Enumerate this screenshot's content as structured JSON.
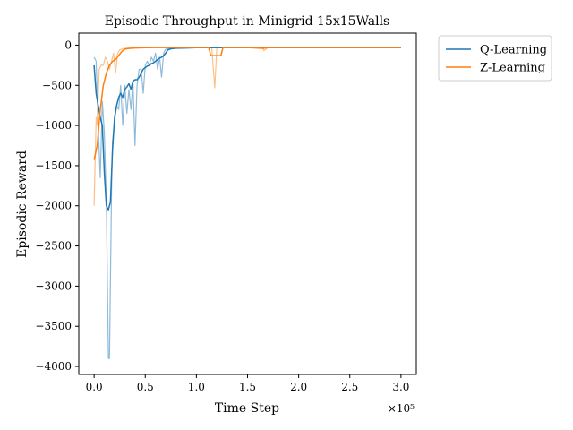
{
  "chart_data": {
    "type": "line",
    "title": "Episodic Throughput in Minigrid 15x15Walls",
    "xlabel": "Time Step",
    "ylabel": "Episodic Reward",
    "x_multiplier_label": "×10⁵",
    "xlim": [
      -0.15,
      3.15
    ],
    "ylim": [
      -4100,
      150
    ],
    "xticks": [
      0.0,
      0.5,
      1.0,
      1.5,
      2.0,
      2.5,
      3.0
    ],
    "xtick_labels": [
      "0.0",
      "0.5",
      "1.0",
      "1.5",
      "2.0",
      "2.5",
      "3.0"
    ],
    "yticks": [
      0,
      -500,
      -1000,
      -1500,
      -2000,
      -2500,
      -3000,
      -3500,
      -4000
    ],
    "ytick_labels": [
      "0",
      "−500",
      "−1000",
      "−1500",
      "−2000",
      "−2500",
      "−3000",
      "−3500",
      "−4000"
    ],
    "grid": false,
    "legend_position": "outside-top-right",
    "series": [
      {
        "name": "Q-Learning",
        "color": "#1f77b4",
        "raw": {
          "x": [
            0.0,
            0.02,
            0.04,
            0.06,
            0.08,
            0.1,
            0.12,
            0.14,
            0.15,
            0.17,
            0.18,
            0.2,
            0.22,
            0.24,
            0.26,
            0.28,
            0.3,
            0.32,
            0.34,
            0.36,
            0.38,
            0.4,
            0.42,
            0.44,
            0.46,
            0.48,
            0.5,
            0.52,
            0.54,
            0.56,
            0.58,
            0.6,
            0.62,
            0.64,
            0.66,
            0.68,
            0.7,
            0.75,
            0.8,
            0.9,
            1.0,
            1.1,
            1.2,
            1.3,
            1.5,
            1.7,
            2.0,
            2.5,
            3.0
          ],
          "y": [
            -150,
            -200,
            -1000,
            -1650,
            -700,
            -1100,
            -1950,
            -3900,
            -3900,
            -1800,
            -1200,
            -950,
            -750,
            -800,
            -500,
            -1000,
            -500,
            -850,
            -550,
            -800,
            -450,
            -1250,
            -500,
            -300,
            -300,
            -600,
            -250,
            -200,
            -250,
            -150,
            -200,
            -100,
            -300,
            -150,
            -400,
            -100,
            -50,
            -40,
            -35,
            -30,
            -30,
            -30,
            -30,
            -30,
            -30,
            -30,
            -30,
            -30,
            -30
          ]
        },
        "smoothed": {
          "x": [
            0.0,
            0.02,
            0.04,
            0.06,
            0.08,
            0.1,
            0.12,
            0.14,
            0.16,
            0.18,
            0.2,
            0.22,
            0.24,
            0.26,
            0.28,
            0.3,
            0.32,
            0.34,
            0.36,
            0.38,
            0.4,
            0.42,
            0.44,
            0.46,
            0.48,
            0.5,
            0.52,
            0.54,
            0.56,
            0.58,
            0.6,
            0.62,
            0.64,
            0.66,
            0.68,
            0.7,
            0.72,
            0.75,
            0.8,
            0.9,
            1.0,
            1.5,
            2.0,
            2.5,
            3.0
          ],
          "y": [
            -250,
            -600,
            -750,
            -900,
            -1000,
            -1600,
            -2000,
            -2050,
            -1950,
            -1300,
            -900,
            -750,
            -650,
            -600,
            -650,
            -550,
            -520,
            -480,
            -550,
            -450,
            -430,
            -430,
            -400,
            -350,
            -300,
            -280,
            -260,
            -250,
            -230,
            -220,
            -200,
            -180,
            -160,
            -150,
            -130,
            -100,
            -60,
            -45,
            -38,
            -35,
            -32,
            -30,
            -30,
            -30,
            -30
          ]
        }
      },
      {
        "name": "Z-Learning",
        "color": "#ff7f0e",
        "raw": {
          "x": [
            0.0,
            0.02,
            0.03,
            0.05,
            0.07,
            0.09,
            0.11,
            0.13,
            0.15,
            0.17,
            0.19,
            0.21,
            0.23,
            0.25,
            0.27,
            0.3,
            0.35,
            0.4,
            0.5,
            0.6,
            0.8,
            1.0,
            1.1,
            1.15,
            1.18,
            1.2,
            1.22,
            1.3,
            1.5,
            1.6,
            1.65,
            1.66,
            1.7,
            2.0,
            2.5,
            3.0
          ],
          "y": [
            -2000,
            -900,
            -1000,
            -300,
            -250,
            -250,
            -150,
            -200,
            -300,
            -200,
            -100,
            -350,
            -100,
            -60,
            -50,
            -40,
            -35,
            -30,
            -30,
            -30,
            -30,
            -30,
            -30,
            -30,
            -530,
            -30,
            -30,
            -30,
            -30,
            -30,
            -30,
            -70,
            -30,
            -30,
            -30,
            -30
          ]
        },
        "smoothed": {
          "x": [
            0.0,
            0.03,
            0.06,
            0.09,
            0.12,
            0.15,
            0.18,
            0.21,
            0.24,
            0.27,
            0.3,
            0.35,
            0.4,
            0.5,
            0.6,
            0.8,
            1.0,
            1.1,
            1.12,
            1.14,
            1.24,
            1.26,
            1.5,
            1.65,
            1.7,
            2.0,
            2.5,
            3.0
          ],
          "y": [
            -1430,
            -1250,
            -800,
            -500,
            -350,
            -250,
            -200,
            -180,
            -130,
            -80,
            -50,
            -40,
            -35,
            -32,
            -30,
            -30,
            -30,
            -30,
            -30,
            -130,
            -130,
            -30,
            -30,
            -40,
            -30,
            -30,
            -30,
            -30
          ]
        }
      }
    ]
  }
}
